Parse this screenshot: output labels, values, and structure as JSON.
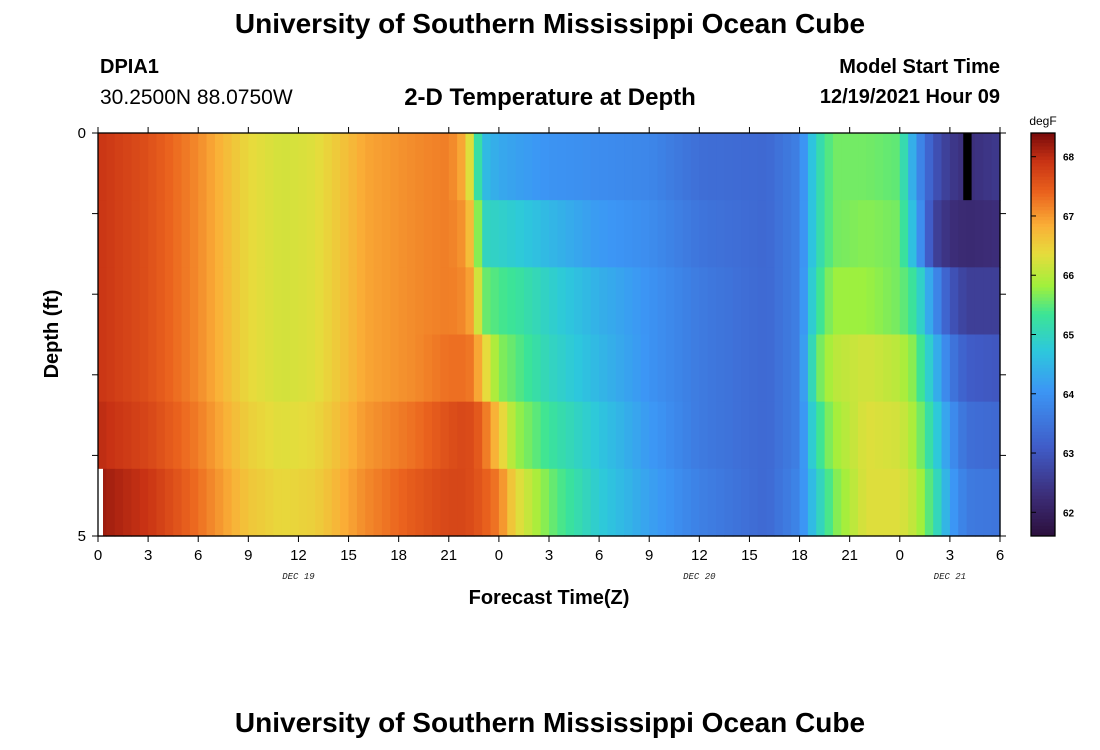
{
  "header": {
    "title": "University of Southern Mississippi Ocean Cube",
    "station": "DPIA1",
    "coordinates": "30.2500N  88.0750W",
    "subtitle": "2-D Temperature at Depth",
    "model_start_label": "Model Start Time",
    "model_start_value": "12/19/2021 Hour 09"
  },
  "footer": {
    "title": "University of Southern Mississippi Ocean Cube"
  },
  "chart_data": {
    "type": "heatmap",
    "title": "2-D Temperature at Depth",
    "xlabel": "Forecast Time(Z)",
    "ylabel": "Depth (ft)",
    "x_ticks": [
      "0",
      "3",
      "6",
      "9",
      "12",
      "15",
      "18",
      "21",
      "0",
      "3",
      "6",
      "9",
      "12",
      "15",
      "18",
      "21",
      "0",
      "3",
      "6"
    ],
    "x_day_labels": [
      {
        "label": "DEC 19",
        "hour_index": 12
      },
      {
        "label": "DEC 20",
        "hour_index": 36
      },
      {
        "label": "DEC 21",
        "hour_index": 51
      }
    ],
    "x_range_hours": [
      0,
      54
    ],
    "y_ticks": [
      "0",
      "5"
    ],
    "y_range": [
      0,
      5
    ],
    "depth_levels": [
      0,
      1,
      2,
      3,
      4,
      5
    ],
    "colorbar": {
      "unit": "degF",
      "min": 61.6,
      "max": 68.4,
      "ticks": [
        62,
        63,
        64,
        65,
        66,
        67,
        68
      ]
    },
    "temperature_keyframes_degF": [
      {
        "hour": 0,
        "layers": [
          67.9,
          67.9,
          67.9,
          67.9,
          68.0,
          68.2
        ]
      },
      {
        "hour": 3,
        "layers": [
          67.6,
          67.6,
          67.6,
          67.6,
          67.7,
          67.9
        ]
      },
      {
        "hour": 6,
        "layers": [
          67.1,
          67.1,
          67.1,
          67.1,
          67.2,
          67.3
        ]
      },
      {
        "hour": 9,
        "layers": [
          66.4,
          66.4,
          66.4,
          66.4,
          66.5,
          66.6
        ]
      },
      {
        "hour": 11,
        "layers": [
          66.2,
          66.2,
          66.2,
          66.2,
          66.3,
          66.4
        ]
      },
      {
        "hour": 13,
        "layers": [
          66.3,
          66.3,
          66.3,
          66.3,
          66.4,
          66.5
        ]
      },
      {
        "hour": 16,
        "layers": [
          66.9,
          66.9,
          66.9,
          66.9,
          67.0,
          67.1
        ]
      },
      {
        "hour": 19,
        "layers": [
          67.1,
          67.1,
          67.1,
          67.1,
          67.3,
          67.5
        ]
      },
      {
        "hour": 21,
        "layers": [
          67.2,
          67.2,
          67.2,
          67.3,
          67.6,
          67.7
        ]
      },
      {
        "hour": 22,
        "layers": [
          66.8,
          67.0,
          67.1,
          67.3,
          67.7,
          67.7
        ]
      },
      {
        "hour": 22.5,
        "layers": [
          65.8,
          66.4,
          66.8,
          67.2,
          67.6,
          67.6
        ]
      },
      {
        "hour": 23,
        "layers": [
          64.6,
          65.0,
          65.6,
          66.6,
          67.4,
          67.5
        ]
      },
      {
        "hour": 24,
        "layers": [
          64.3,
          64.9,
          65.4,
          65.7,
          66.6,
          67.2
        ]
      },
      {
        "hour": 25,
        "layers": [
          64.2,
          64.8,
          65.3,
          65.5,
          65.8,
          66.4
        ]
      },
      {
        "hour": 27,
        "layers": [
          64.0,
          64.5,
          64.9,
          65.0,
          65.3,
          65.6
        ]
      },
      {
        "hour": 30,
        "layers": [
          63.9,
          64.1,
          64.4,
          64.5,
          64.7,
          64.8
        ]
      },
      {
        "hour": 33,
        "layers": [
          63.8,
          63.9,
          64.0,
          64.0,
          64.1,
          64.2
        ]
      },
      {
        "hour": 36,
        "layers": [
          63.4,
          63.5,
          63.6,
          63.6,
          63.6,
          63.7
        ]
      },
      {
        "hour": 40,
        "layers": [
          63.3,
          63.3,
          63.3,
          63.3,
          63.3,
          63.3
        ]
      },
      {
        "hour": 42,
        "layers": [
          63.7,
          63.7,
          63.7,
          63.7,
          63.7,
          63.8
        ]
      },
      {
        "hour": 43,
        "layers": [
          65.0,
          65.0,
          65.2,
          65.5,
          65.2,
          64.8
        ]
      },
      {
        "hour": 44,
        "layers": [
          65.6,
          65.6,
          65.8,
          66.0,
          65.8,
          65.6
        ]
      },
      {
        "hour": 46,
        "layers": [
          65.6,
          65.7,
          65.8,
          66.2,
          66.3,
          66.3
        ]
      },
      {
        "hour": 48,
        "layers": [
          65.5,
          65.6,
          65.6,
          66.0,
          66.2,
          66.3
        ]
      },
      {
        "hour": 49,
        "layers": [
          64.0,
          64.3,
          65.2,
          65.6,
          65.8,
          66.0
        ]
      },
      {
        "hour": 50,
        "layers": [
          63.0,
          62.7,
          64.0,
          64.6,
          65.0,
          65.3
        ]
      },
      {
        "hour": 51,
        "layers": [
          62.5,
          62.3,
          63.0,
          63.6,
          64.0,
          64.2
        ]
      },
      {
        "hour": 52,
        "layers": [
          62.3,
          62.2,
          62.6,
          63.1,
          63.4,
          63.6
        ]
      },
      {
        "hour": 54,
        "layers": [
          62.5,
          62.3,
          62.6,
          63.0,
          63.3,
          63.5
        ]
      }
    ],
    "annotation": "black cell near hour 52, surface layer"
  }
}
